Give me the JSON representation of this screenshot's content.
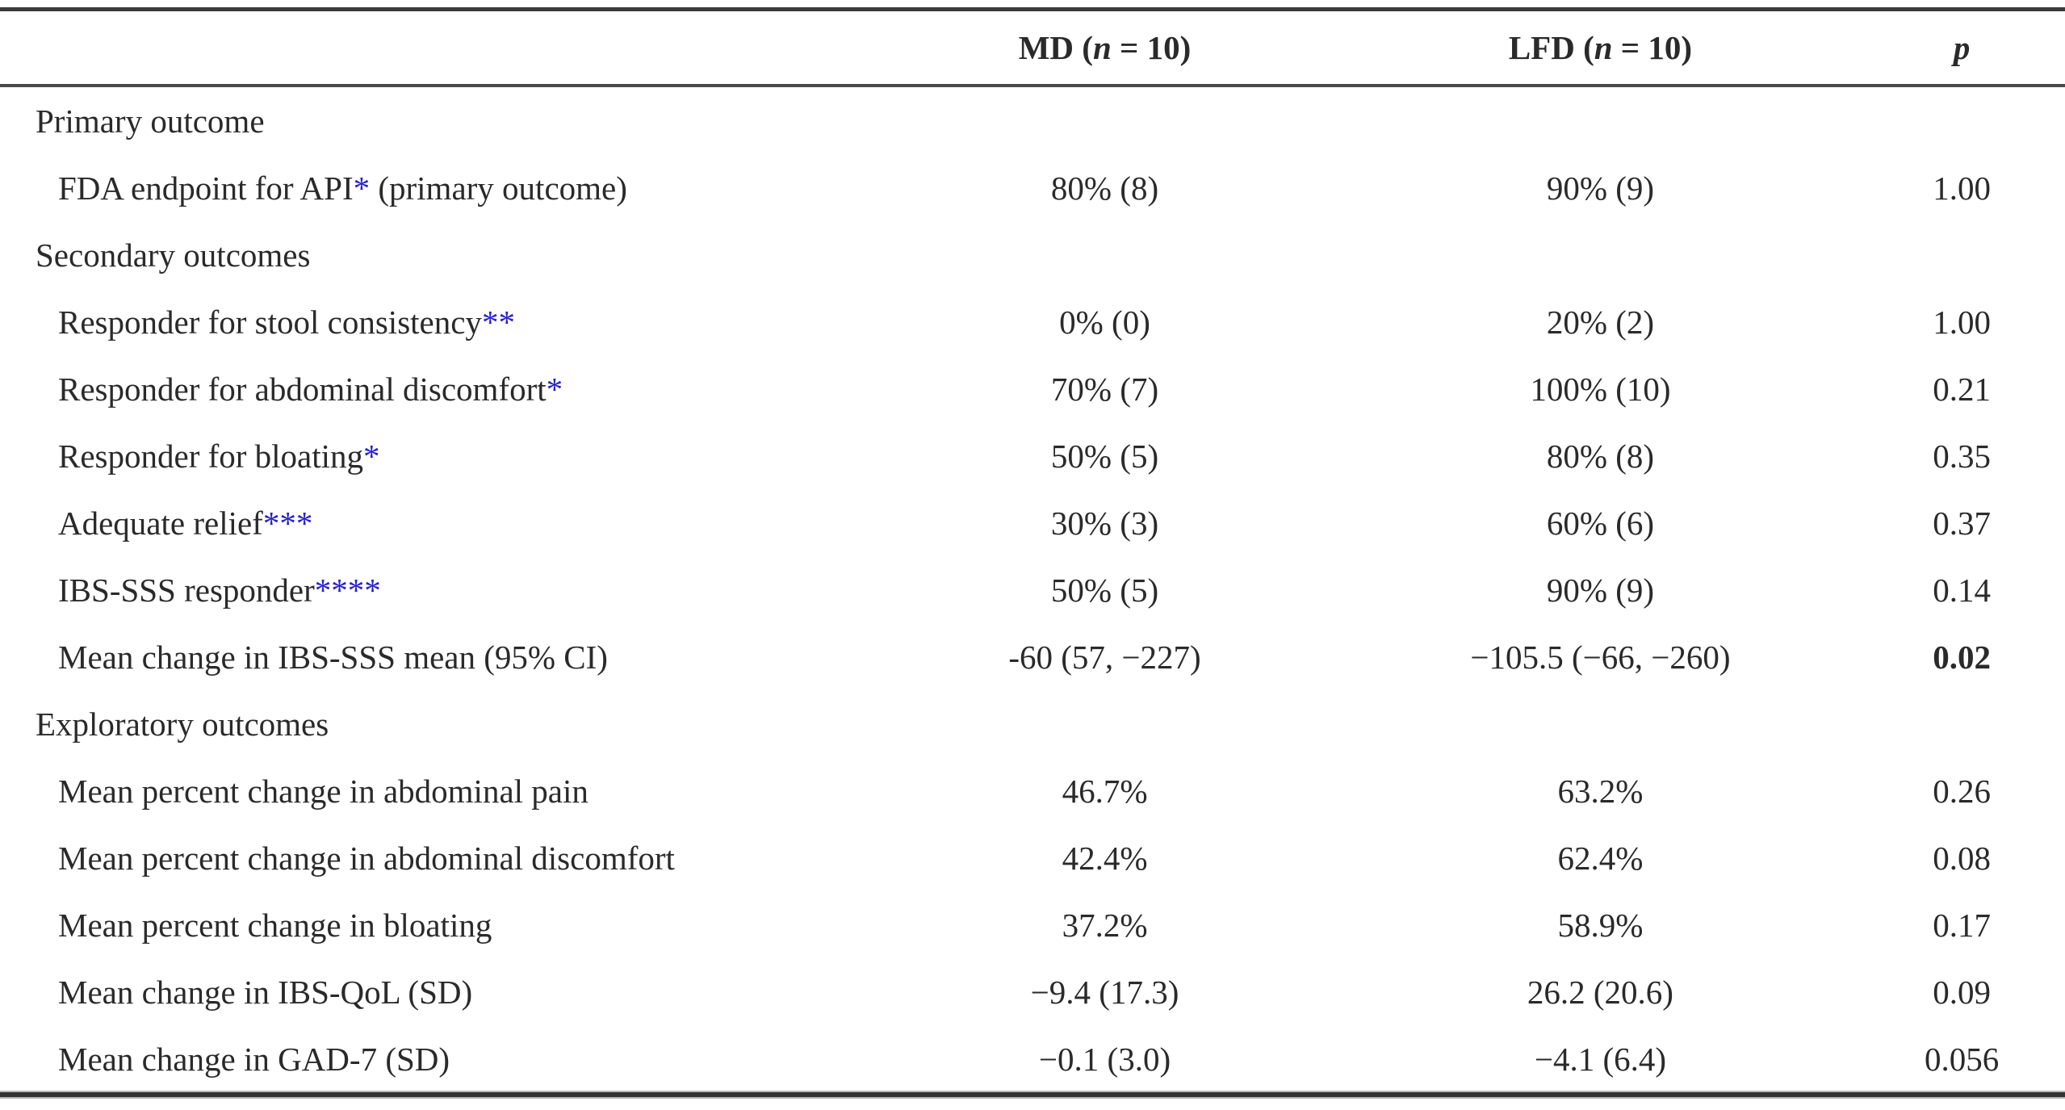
{
  "colors": {
    "text": "#2a2a2a",
    "asterisk": "#2522cc",
    "rule": "#3b3b3b"
  },
  "header": {
    "label": "",
    "md": {
      "pre": "MD (",
      "n": "n",
      "post": " = 10)"
    },
    "lfd": {
      "pre": "LFD (",
      "n": "n",
      "post": " = 10)"
    },
    "p": "p"
  },
  "rows": [
    {
      "type": "section",
      "label": "Primary outcome",
      "ast": "",
      "label2": "",
      "md": "",
      "lfd": "",
      "p": ""
    },
    {
      "type": "data",
      "label": "FDA endpoint for API",
      "ast": "*",
      "label2": " (primary outcome)",
      "md": "80% (8)",
      "lfd": "90% (9)",
      "p": "1.00"
    },
    {
      "type": "section",
      "label": "Secondary outcomes",
      "ast": "",
      "label2": "",
      "md": "",
      "lfd": "",
      "p": ""
    },
    {
      "type": "data",
      "label": "Responder for stool consistency",
      "ast": "**",
      "label2": "",
      "md": "0% (0)",
      "lfd": "20% (2)",
      "p": "1.00"
    },
    {
      "type": "data",
      "label": "Responder for abdominal discomfort",
      "ast": "*",
      "label2": "",
      "md": "70% (7)",
      "lfd": "100% (10)",
      "p": "0.21"
    },
    {
      "type": "data",
      "label": "Responder for bloating",
      "ast": "*",
      "label2": "",
      "md": "50% (5)",
      "lfd": "80% (8)",
      "p": "0.35"
    },
    {
      "type": "data",
      "label": "Adequate relief",
      "ast": "***",
      "label2": "",
      "md": "30% (3)",
      "lfd": "60% (6)",
      "p": "0.37"
    },
    {
      "type": "data",
      "label": "IBS-SSS responder",
      "ast": "****",
      "label2": "",
      "md": "50% (5)",
      "lfd": "90% (9)",
      "p": "0.14"
    },
    {
      "type": "data",
      "label": "Mean change in IBS-SSS mean (95% CI)",
      "ast": "",
      "label2": "",
      "md": "-60 (57, −227)",
      "lfd": "−105.5 (−66, −260)",
      "p": "0.02",
      "p_significant": true
    },
    {
      "type": "section",
      "label": "Exploratory outcomes",
      "ast": "",
      "label2": "",
      "md": "",
      "lfd": "",
      "p": ""
    },
    {
      "type": "data",
      "label": "Mean percent change in abdominal pain",
      "ast": "",
      "label2": "",
      "md": "46.7%",
      "lfd": "63.2%",
      "p": "0.26"
    },
    {
      "type": "data",
      "label": "Mean percent change in abdominal discomfort",
      "ast": "",
      "label2": "",
      "md": "42.4%",
      "lfd": "62.4%",
      "p": "0.08"
    },
    {
      "type": "data",
      "label": "Mean percent change in bloating",
      "ast": "",
      "label2": "",
      "md": "37.2%",
      "lfd": "58.9%",
      "p": "0.17"
    },
    {
      "type": "data",
      "label": "Mean change in IBS-QoL (SD)",
      "ast": "",
      "label2": "",
      "md": "−9.4 (17.3)",
      "lfd": "26.2 (20.6)",
      "p": "0.09"
    },
    {
      "type": "data",
      "label": "Mean change in GAD-7 (SD)",
      "ast": "",
      "label2": "",
      "md": "−0.1 (3.0)",
      "lfd": "−4.1 (6.4)",
      "p": "0.056"
    }
  ]
}
